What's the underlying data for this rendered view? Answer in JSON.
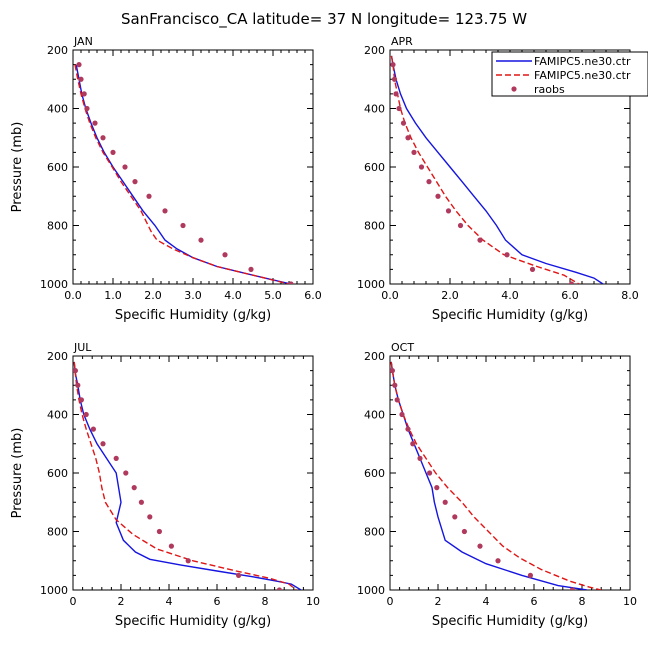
{
  "title": "SanFrancisco_CA  latitude= 37 N longitude= 123.75 W",
  "colors": {
    "ctr_solid": "#1515e0",
    "ctr_dashed": "#e01515",
    "raobs": "#b03a5e",
    "axis": "#000000"
  },
  "legend": {
    "placement": "top-right of APR panel",
    "entries": [
      {
        "label": "FAMIPC5.ne30.ctr",
        "style": "solid",
        "color": "#1515e0"
      },
      {
        "label": "FAMIPC5.ne30.ctr",
        "style": "dashed",
        "color": "#e01515"
      },
      {
        "label": "raobs",
        "style": "dot",
        "color": "#b03a5e"
      }
    ]
  },
  "chart_data": [
    {
      "type": "line",
      "panel_label": "JAN",
      "xlabel": "Specific Humidity (g/kg)",
      "ylabel": "Pressure (mb)",
      "xlim": [
        0,
        6
      ],
      "ylim": [
        1000,
        200
      ],
      "y_inverted": true,
      "xticks": [
        "0.0",
        "1.0",
        "2.0",
        "3.0",
        "4.0",
        "5.0",
        "6.0"
      ],
      "yticks": [
        "200",
        "400",
        "600",
        "800",
        "1000"
      ],
      "series": [
        {
          "style": "solid",
          "points": [
            [
              0.08,
              250
            ],
            [
              0.15,
              300
            ],
            [
              0.22,
              350
            ],
            [
              0.32,
              400
            ],
            [
              0.45,
              450
            ],
            [
              0.6,
              500
            ],
            [
              0.78,
              550
            ],
            [
              1.0,
              600
            ],
            [
              1.25,
              650
            ],
            [
              1.5,
              700
            ],
            [
              1.75,
              750
            ],
            [
              2.05,
              800
            ],
            [
              2.3,
              850
            ],
            [
              2.6,
              880
            ],
            [
              3.0,
              910
            ],
            [
              3.6,
              940
            ],
            [
              4.2,
              960
            ],
            [
              4.8,
              980
            ],
            [
              5.45,
              1000
            ]
          ]
        },
        {
          "style": "dashed",
          "points": [
            [
              0.05,
              250
            ],
            [
              0.12,
              300
            ],
            [
              0.2,
              350
            ],
            [
              0.3,
              400
            ],
            [
              0.42,
              450
            ],
            [
              0.57,
              500
            ],
            [
              0.75,
              550
            ],
            [
              0.98,
              600
            ],
            [
              1.2,
              650
            ],
            [
              1.45,
              700
            ],
            [
              1.7,
              750
            ],
            [
              1.95,
              820
            ],
            [
              2.1,
              850
            ],
            [
              2.5,
              880
            ],
            [
              3.0,
              910
            ],
            [
              3.6,
              940
            ],
            [
              4.2,
              960
            ],
            [
              4.8,
              980
            ],
            [
              5.4,
              1000
            ]
          ]
        },
        {
          "style": "dot",
          "points": [
            [
              0.15,
              250
            ],
            [
              0.2,
              300
            ],
            [
              0.28,
              350
            ],
            [
              0.35,
              400
            ],
            [
              0.55,
              450
            ],
            [
              0.75,
              500
            ],
            [
              1.0,
              550
            ],
            [
              1.3,
              600
            ],
            [
              1.55,
              650
            ],
            [
              1.9,
              700
            ],
            [
              2.3,
              750
            ],
            [
              2.75,
              800
            ],
            [
              3.2,
              850
            ],
            [
              3.8,
              900
            ],
            [
              4.45,
              950
            ],
            [
              5.45,
              1000
            ]
          ]
        }
      ]
    },
    {
      "type": "line",
      "panel_label": "APR",
      "xlabel": "Specific Humidity (g/kg)",
      "ylabel": "",
      "xlim": [
        0,
        8
      ],
      "ylim": [
        1000,
        200
      ],
      "y_inverted": true,
      "xticks": [
        "0.0",
        "2.0",
        "4.0",
        "6.0",
        "8.0"
      ],
      "yticks": [
        "200",
        "400",
        "600",
        "800",
        "1000"
      ],
      "series": [
        {
          "style": "solid",
          "points": [
            [
              0.05,
              220
            ],
            [
              0.1,
              250
            ],
            [
              0.2,
              300
            ],
            [
              0.35,
              350
            ],
            [
              0.55,
              400
            ],
            [
              0.85,
              450
            ],
            [
              1.2,
              500
            ],
            [
              1.6,
              550
            ],
            [
              2.0,
              600
            ],
            [
              2.4,
              650
            ],
            [
              2.8,
              700
            ],
            [
              3.2,
              750
            ],
            [
              3.55,
              800
            ],
            [
              3.85,
              850
            ],
            [
              4.4,
              900
            ],
            [
              5.2,
              930
            ],
            [
              6.2,
              960
            ],
            [
              6.8,
              980
            ],
            [
              7.1,
              1000
            ]
          ]
        },
        {
          "style": "dashed",
          "points": [
            [
              0.05,
              220
            ],
            [
              0.1,
              250
            ],
            [
              0.15,
              300
            ],
            [
              0.25,
              350
            ],
            [
              0.35,
              400
            ],
            [
              0.5,
              450
            ],
            [
              0.7,
              500
            ],
            [
              0.95,
              550
            ],
            [
              1.25,
              600
            ],
            [
              1.55,
              650
            ],
            [
              1.85,
              700
            ],
            [
              2.2,
              750
            ],
            [
              2.6,
              800
            ],
            [
              3.1,
              850
            ],
            [
              3.8,
              900
            ],
            [
              4.9,
              940
            ],
            [
              5.8,
              970
            ],
            [
              6.3,
              1000
            ]
          ]
        },
        {
          "style": "dot",
          "points": [
            [
              0.1,
              250
            ],
            [
              0.15,
              300
            ],
            [
              0.2,
              350
            ],
            [
              0.3,
              400
            ],
            [
              0.45,
              450
            ],
            [
              0.6,
              500
            ],
            [
              0.8,
              550
            ],
            [
              1.05,
              600
            ],
            [
              1.3,
              650
            ],
            [
              1.6,
              700
            ],
            [
              1.95,
              750
            ],
            [
              2.35,
              800
            ],
            [
              3.0,
              850
            ],
            [
              3.9,
              900
            ],
            [
              4.75,
              950
            ],
            [
              6.05,
              1000
            ]
          ]
        }
      ]
    },
    {
      "type": "line",
      "panel_label": "JUL",
      "xlabel": "Specific Humidity (g/kg)",
      "ylabel": "Pressure (mb)",
      "xlim": [
        0,
        10
      ],
      "ylim": [
        1000,
        200
      ],
      "y_inverted": true,
      "xticks": [
        "0",
        "2",
        "4",
        "6",
        "8",
        "10"
      ],
      "yticks": [
        "200",
        "400",
        "600",
        "800",
        "1000"
      ],
      "series": [
        {
          "style": "solid",
          "points": [
            [
              0.05,
              220
            ],
            [
              0.1,
              260
            ],
            [
              0.2,
              300
            ],
            [
              0.3,
              350
            ],
            [
              0.45,
              400
            ],
            [
              0.7,
              450
            ],
            [
              1.0,
              500
            ],
            [
              1.4,
              550
            ],
            [
              1.8,
              600
            ],
            [
              1.9,
              650
            ],
            [
              2.0,
              700
            ],
            [
              1.8,
              770
            ],
            [
              2.1,
              830
            ],
            [
              2.6,
              870
            ],
            [
              3.2,
              895
            ],
            [
              4.5,
              915
            ],
            [
              6.0,
              935
            ],
            [
              7.5,
              955
            ],
            [
              8.5,
              970
            ],
            [
              9.1,
              980
            ],
            [
              9.5,
              1000
            ]
          ]
        },
        {
          "style": "dashed",
          "points": [
            [
              0.05,
              220
            ],
            [
              0.1,
              260
            ],
            [
              0.15,
              300
            ],
            [
              0.25,
              350
            ],
            [
              0.38,
              400
            ],
            [
              0.55,
              450
            ],
            [
              0.75,
              500
            ],
            [
              0.95,
              550
            ],
            [
              1.1,
              600
            ],
            [
              1.2,
              650
            ],
            [
              1.35,
              700
            ],
            [
              1.8,
              760
            ],
            [
              2.5,
              810
            ],
            [
              3.5,
              860
            ],
            [
              5.0,
              900
            ],
            [
              6.8,
              935
            ],
            [
              8.2,
              960
            ],
            [
              9.0,
              980
            ],
            [
              9.3,
              1000
            ]
          ]
        },
        {
          "style": "dot",
          "points": [
            [
              0.1,
              250
            ],
            [
              0.2,
              300
            ],
            [
              0.35,
              350
            ],
            [
              0.55,
              400
            ],
            [
              0.85,
              450
            ],
            [
              1.25,
              500
            ],
            [
              1.8,
              550
            ],
            [
              2.2,
              600
            ],
            [
              2.55,
              650
            ],
            [
              2.85,
              700
            ],
            [
              3.2,
              750
            ],
            [
              3.6,
              800
            ],
            [
              4.1,
              850
            ],
            [
              4.8,
              900
            ],
            [
              6.9,
              950
            ],
            [
              8.6,
              1000
            ]
          ]
        }
      ]
    },
    {
      "type": "line",
      "panel_label": "OCT",
      "xlabel": "Specific Humidity (g/kg)",
      "ylabel": "",
      "xlim": [
        0,
        10
      ],
      "ylim": [
        1000,
        200
      ],
      "y_inverted": true,
      "xticks": [
        "0",
        "2",
        "4",
        "6",
        "8",
        "10"
      ],
      "yticks": [
        "200",
        "400",
        "600",
        "800",
        "1000"
      ],
      "series": [
        {
          "style": "solid",
          "points": [
            [
              0.05,
              220
            ],
            [
              0.1,
              250
            ],
            [
              0.2,
              300
            ],
            [
              0.35,
              350
            ],
            [
              0.55,
              400
            ],
            [
              0.75,
              450
            ],
            [
              1.0,
              500
            ],
            [
              1.25,
              550
            ],
            [
              1.5,
              600
            ],
            [
              1.75,
              650
            ],
            [
              1.85,
              700
            ],
            [
              2.0,
              750
            ],
            [
              2.3,
              830
            ],
            [
              3.0,
              870
            ],
            [
              4.0,
              910
            ],
            [
              5.5,
              950
            ],
            [
              7.0,
              985
            ],
            [
              8.2,
              1000
            ]
          ]
        },
        {
          "style": "dashed",
          "points": [
            [
              0.05,
              220
            ],
            [
              0.1,
              250
            ],
            [
              0.2,
              300
            ],
            [
              0.35,
              350
            ],
            [
              0.55,
              400
            ],
            [
              0.8,
              450
            ],
            [
              1.1,
              500
            ],
            [
              1.5,
              550
            ],
            [
              1.9,
              600
            ],
            [
              2.4,
              650
            ],
            [
              3.0,
              700
            ],
            [
              3.5,
              750
            ],
            [
              4.1,
              800
            ],
            [
              4.7,
              850
            ],
            [
              5.4,
              890
            ],
            [
              6.3,
              930
            ],
            [
              7.5,
              970
            ],
            [
              8.3,
              990
            ],
            [
              8.8,
              1000
            ]
          ]
        },
        {
          "style": "dot",
          "points": [
            [
              0.1,
              250
            ],
            [
              0.2,
              300
            ],
            [
              0.3,
              350
            ],
            [
              0.5,
              400
            ],
            [
              0.75,
              450
            ],
            [
              0.95,
              500
            ],
            [
              1.25,
              550
            ],
            [
              1.65,
              600
            ],
            [
              1.95,
              650
            ],
            [
              2.3,
              700
            ],
            [
              2.7,
              750
            ],
            [
              3.1,
              800
            ],
            [
              3.75,
              850
            ],
            [
              4.5,
              900
            ],
            [
              5.85,
              950
            ],
            [
              7.6,
              1000
            ]
          ]
        }
      ]
    }
  ]
}
